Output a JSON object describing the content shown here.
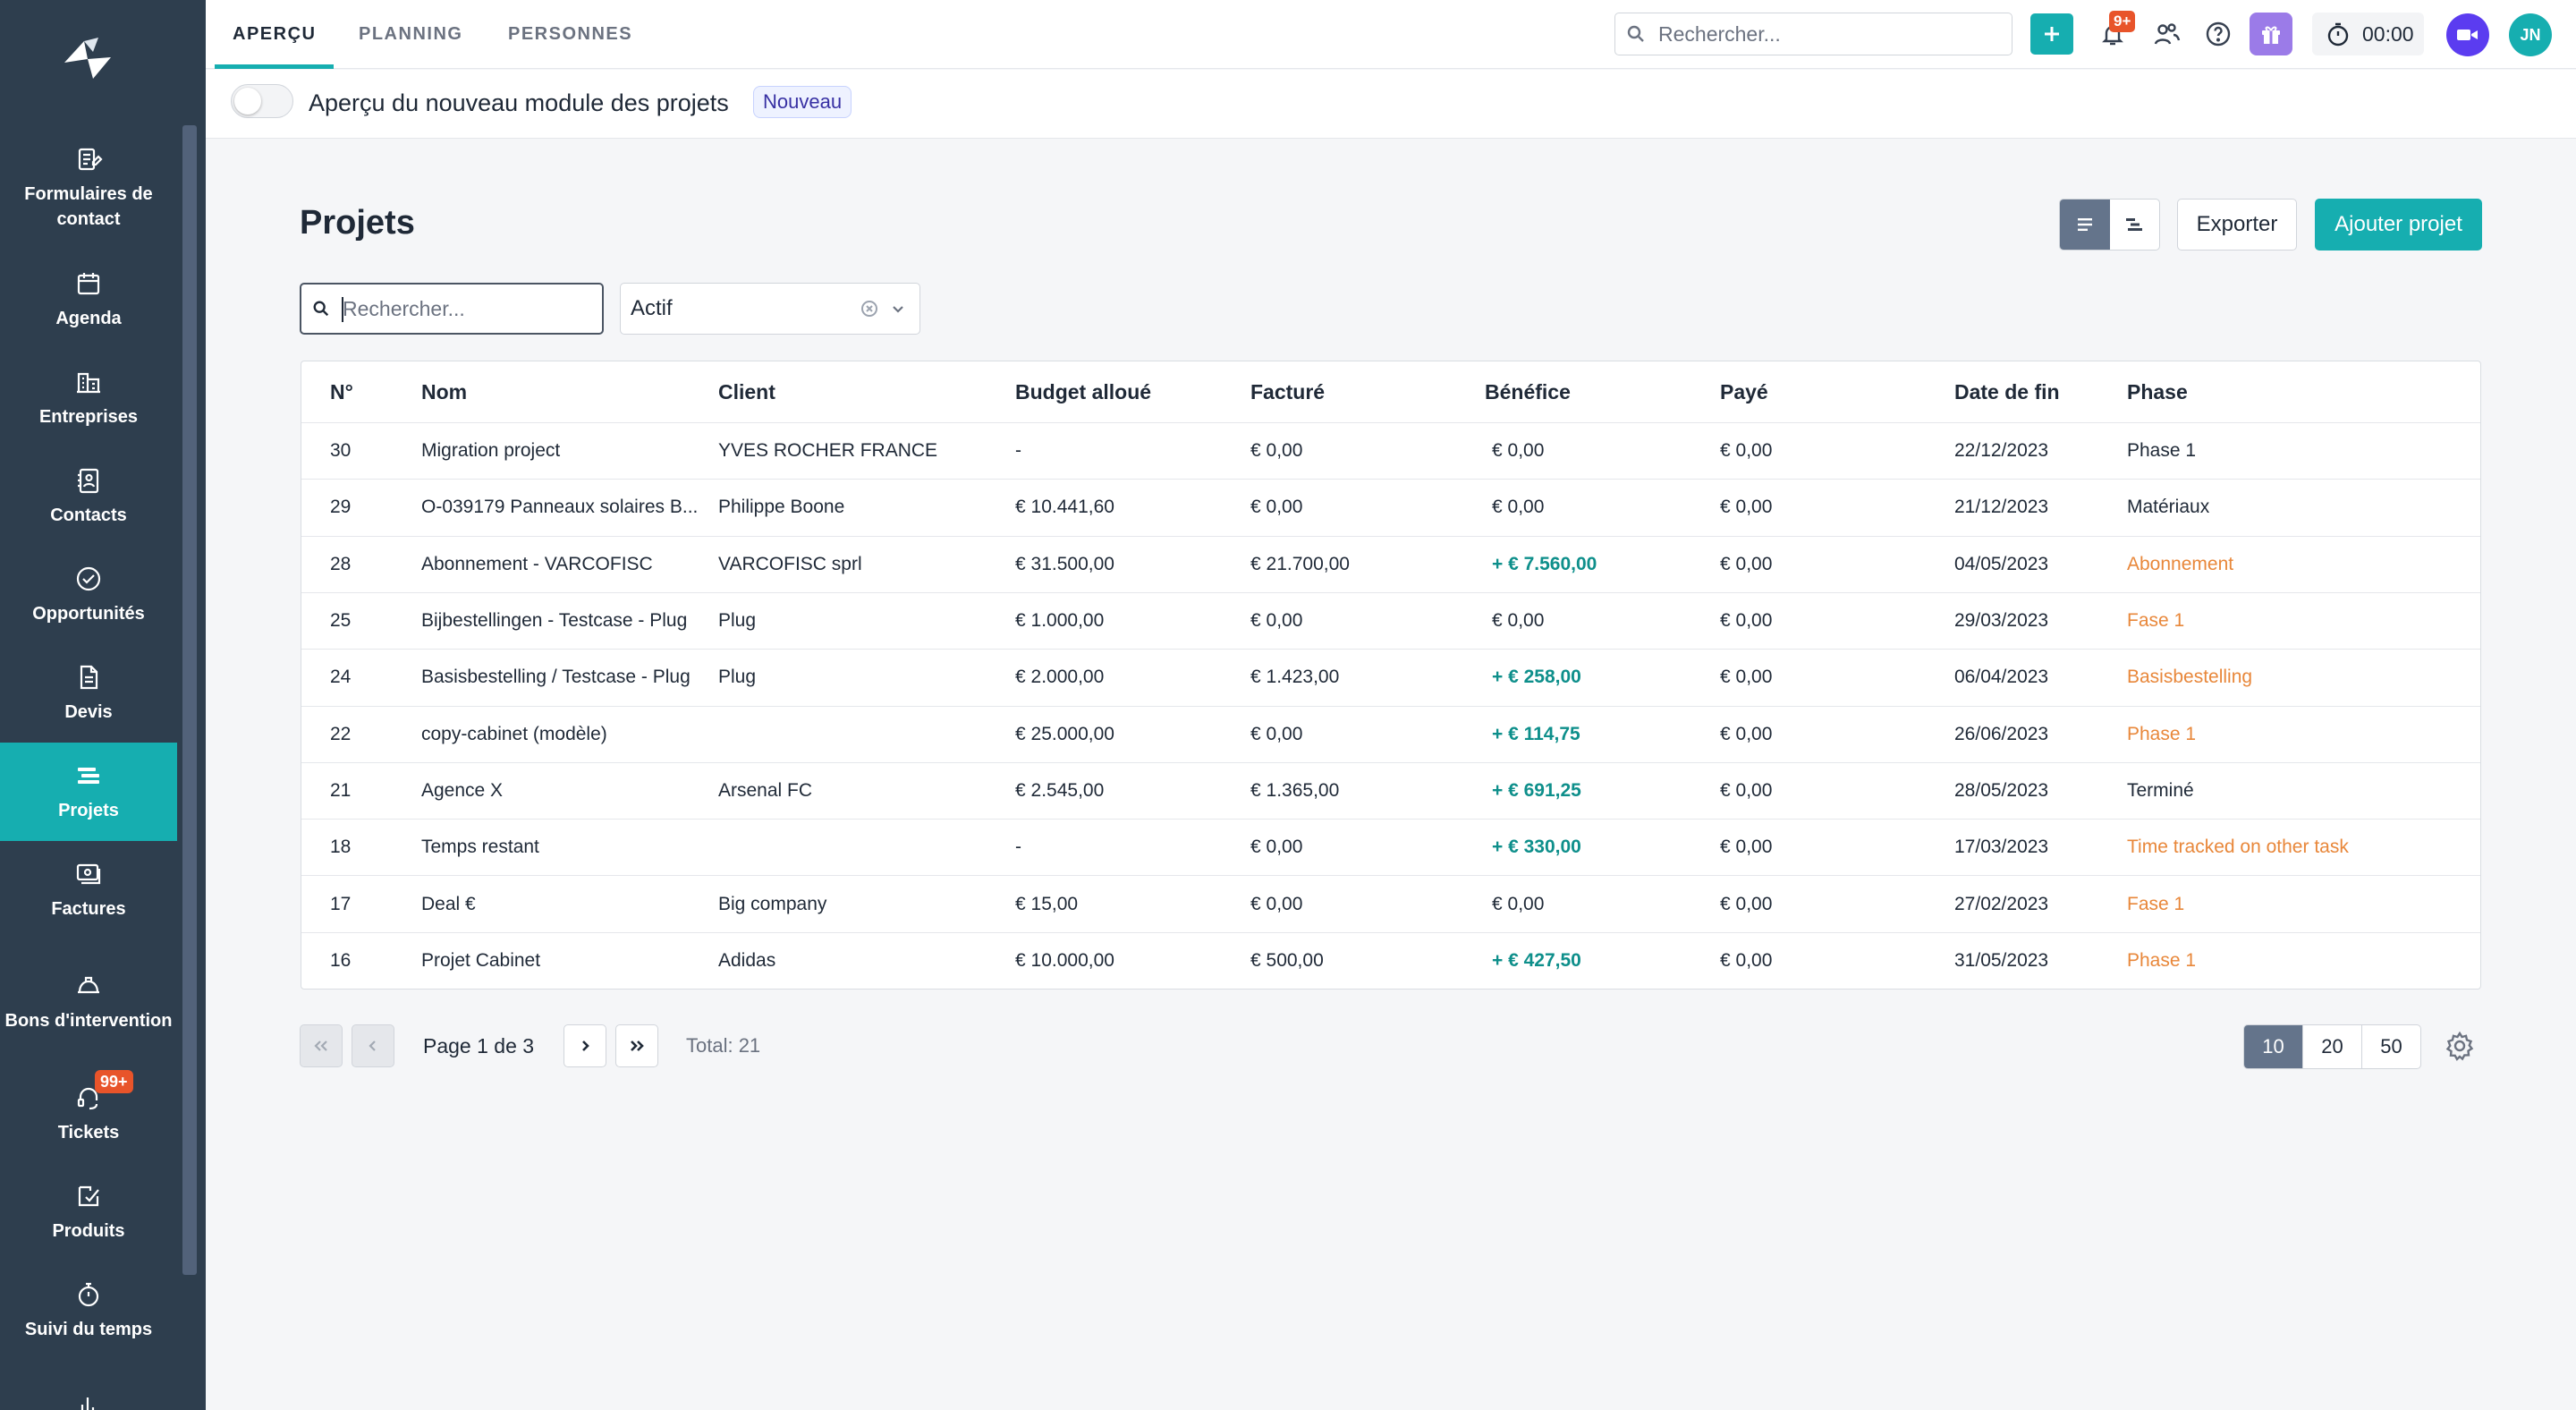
{
  "sidebar": {
    "items": [
      {
        "label": "Formulaires de contact",
        "icon": "contact-form-icon"
      },
      {
        "label": "Agenda",
        "icon": "calendar-icon"
      },
      {
        "label": "Entreprises",
        "icon": "building-icon"
      },
      {
        "label": "Contacts",
        "icon": "address-book-icon"
      },
      {
        "label": "Opportunités",
        "icon": "check-circle-icon"
      },
      {
        "label": "Devis",
        "icon": "document-icon"
      },
      {
        "label": "Projets",
        "icon": "projects-icon",
        "active": true
      },
      {
        "label": "Factures",
        "icon": "invoice-icon"
      },
      {
        "label": "Bons d'intervention",
        "icon": "hard-hat-icon"
      },
      {
        "label": "Tickets",
        "icon": "headset-icon",
        "badge": "99+"
      },
      {
        "label": "Produits",
        "icon": "product-icon"
      },
      {
        "label": "Suivi du temps",
        "icon": "stopwatch-icon"
      },
      {
        "label": "",
        "icon": "chart-icon"
      }
    ]
  },
  "topbar": {
    "tabs": [
      {
        "label": "APERÇU",
        "active": true
      },
      {
        "label": "PLANNING"
      },
      {
        "label": "PERSONNES"
      }
    ],
    "search_placeholder": "Rechercher...",
    "notifications_badge": "9+",
    "timer": "00:00",
    "avatar_initials": "JN"
  },
  "banner": {
    "text": "Aperçu du nouveau module des projets",
    "badge": "Nouveau"
  },
  "page": {
    "title": "Projets",
    "export_label": "Exporter",
    "add_label": "Ajouter projet",
    "search_placeholder": "Rechercher...",
    "status_filter": "Actif"
  },
  "table": {
    "columns": [
      "N°",
      "Nom",
      "Client",
      "Budget alloué",
      "Facturé",
      "Bénéfice",
      "Payé",
      "Date de fin",
      "Phase"
    ],
    "rows": [
      {
        "no": "30",
        "nom": "Migration project",
        "client": "YVES ROCHER FRANCE",
        "budget": " -",
        "facture": "€ 0,00",
        "benefice": "€ 0,00",
        "paye": "€ 0,00",
        "date": "22/12/2023",
        "phase": "Phase 1"
      },
      {
        "no": "29",
        "nom": "O-039179 Panneaux solaires B...",
        "client": "Philippe Boone",
        "budget": "€ 10.441,60",
        "facture": "€ 0,00",
        "benefice": "€ 0,00",
        "paye": "€ 0,00",
        "date": "21/12/2023",
        "phase": "Matériaux"
      },
      {
        "no": "28",
        "nom": "Abonnement - VARCOFISC",
        "client": "VARCOFISC sprl",
        "budget": "€ 31.500,00",
        "facture": "€ 21.700,00",
        "benefice": "+ € 7.560,00",
        "paye": "€ 0,00",
        "date": "04/05/2023",
        "phase": "Abonnement"
      },
      {
        "no": "25",
        "nom": "Bijbestellingen - Testcase - Plug",
        "client": "Plug",
        "budget": "€ 1.000,00",
        "facture": "€ 0,00",
        "benefice": "€ 0,00",
        "paye": "€ 0,00",
        "date": "29/03/2023",
        "phase": "Fase 1"
      },
      {
        "no": "24",
        "nom": "Basisbestelling / Testcase - Plug",
        "client": "Plug",
        "budget": "€ 2.000,00",
        "facture": "€ 1.423,00",
        "benefice": "+ € 258,00",
        "paye": "€ 0,00",
        "date": "06/04/2023",
        "phase": "Basisbestelling"
      },
      {
        "no": "22",
        "nom": "copy-cabinet (modèle)",
        "client": "",
        "budget": "€ 25.000,00",
        "facture": "€ 0,00",
        "benefice": "+ € 114,75",
        "paye": "€ 0,00",
        "date": "26/06/2023",
        "phase": "Phase 1"
      },
      {
        "no": "21",
        "nom": "Agence X",
        "client": "Arsenal FC",
        "budget": "€ 2.545,00",
        "facture": "€ 1.365,00",
        "benefice": "+ € 691,25",
        "paye": "€ 0,00",
        "date": "28/05/2023",
        "phase": "Terminé"
      },
      {
        "no": "18",
        "nom": "Temps restant",
        "client": "",
        "budget": " -",
        "facture": "€ 0,00",
        "benefice": "+ € 330,00",
        "paye": "€ 0,00",
        "date": "17/03/2023",
        "phase": "Time tracked on other task"
      },
      {
        "no": "17",
        "nom": "Deal €",
        "client": "Big company",
        "budget": "€ 15,00",
        "facture": "€ 0,00",
        "benefice": "€ 0,00",
        "paye": "€ 0,00",
        "date": "27/02/2023",
        "phase": "Fase 1"
      },
      {
        "no": "16",
        "nom": "Projet Cabinet",
        "client": "Adidas",
        "budget": "€ 10.000,00",
        "facture": "€ 500,00",
        "benefice": "+ € 427,50",
        "paye": "€ 0,00",
        "date": "31/05/2023",
        "phase": "Phase 1"
      }
    ]
  },
  "pagination": {
    "page_text": "Page 1 de 3",
    "total_text": "Total: 21",
    "sizes": [
      "10",
      "20",
      "50"
    ],
    "selected_size": "10"
  },
  "colors": {
    "accent": "#16aeb0",
    "sidebar_bg": "#2e3e4e",
    "positive": "#0e8f8b",
    "phase_orange": "#e8873a",
    "badge_red": "#e8542a"
  }
}
